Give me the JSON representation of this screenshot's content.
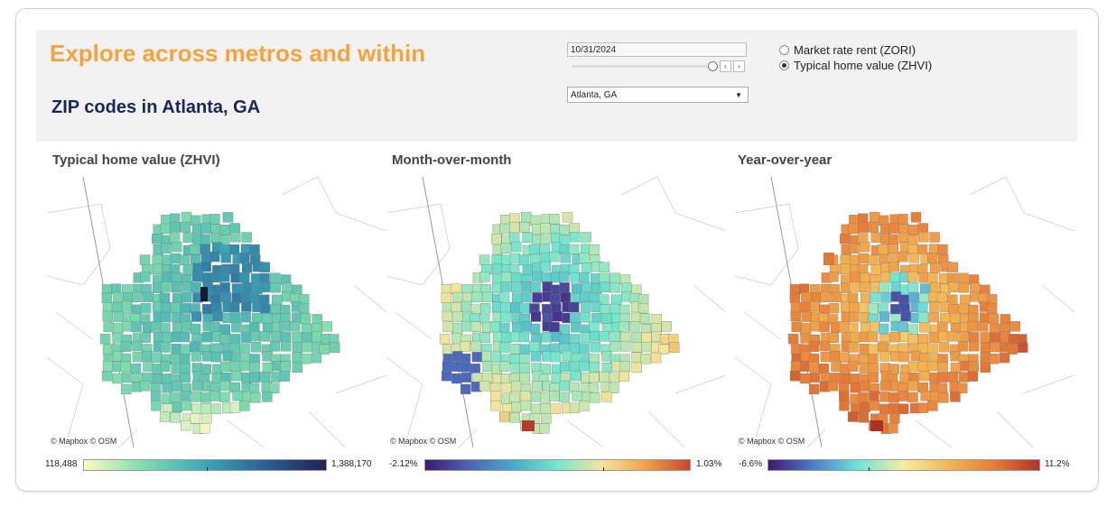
{
  "header": {
    "title": "Explore across metros and within",
    "subtitle": "ZIP codes in Atlanta, GA"
  },
  "controls": {
    "date_value": "10/31/2024",
    "prev_icon": "chevron-left-icon",
    "next_icon": "chevron-right-icon",
    "metro_select": "Atlanta, GA",
    "radio_options": [
      {
        "label": "Market rate rent (ZORI)",
        "selected": false
      },
      {
        "label": "Typical home value (ZHVI)",
        "selected": true
      }
    ]
  },
  "panels": [
    {
      "title": "Typical home value (ZHVI)",
      "credit": "© Mapbox  © OSM",
      "legend_min": "118,488",
      "legend_max": "1,388,170",
      "colors": [
        "#fbfac4",
        "#7fdcae",
        "#3aa8b8",
        "#2d5e95",
        "#1d2452"
      ]
    },
    {
      "title": "Month-over-month",
      "credit": "© Mapbox  © OSM",
      "legend_min": "-2.12%",
      "legend_max": "1.03%",
      "colors": [
        "#3d1a6e",
        "#4e63b8",
        "#47aac7",
        "#75e7cc",
        "#f2e59c",
        "#f1a24a",
        "#c8452a"
      ]
    },
    {
      "title": "Year-over-year",
      "credit": "© Mapbox  © OSM",
      "legend_min": "-6.6%",
      "legend_max": "11.2%",
      "colors": [
        "#3d1a6e",
        "#4e7bcc",
        "#6ee6d6",
        "#f7ec9d",
        "#f4b653",
        "#e77c38",
        "#b43228"
      ]
    }
  ]
}
